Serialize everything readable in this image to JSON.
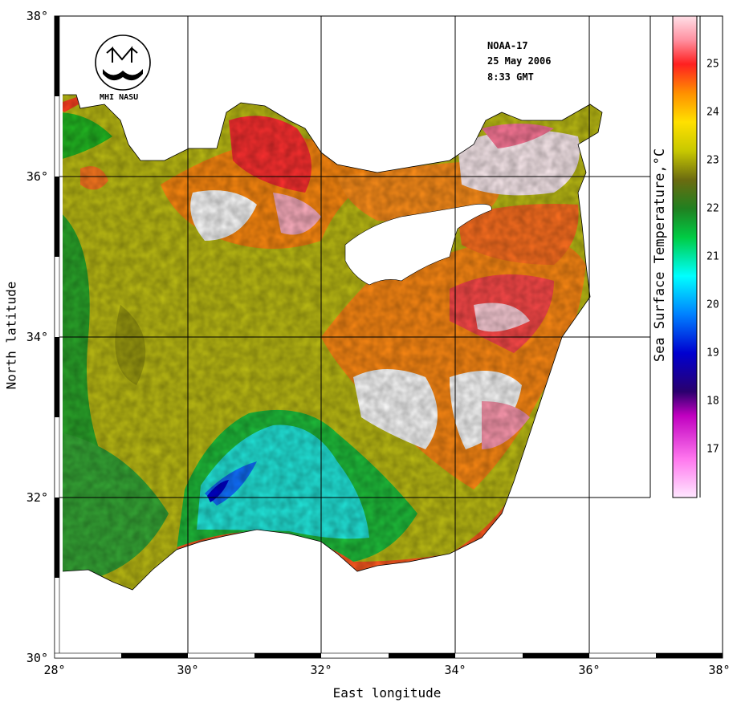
{
  "map": {
    "title_lines": [
      "NOAA-17",
      "25 May 2006",
      "8:33 GMT"
    ],
    "logo_text": "MHI NASU",
    "x_axis_title": "East longitude",
    "y_axis_title": "North latitude",
    "x_ticks": [
      "28°",
      "30°",
      "32°",
      "34°",
      "36°",
      "38°"
    ],
    "y_ticks": [
      "38°",
      "36°",
      "34°",
      "32°",
      "30°"
    ],
    "x_range": [
      28,
      38
    ],
    "y_range": [
      30,
      38
    ],
    "colorbar": {
      "title": "Sea Surface Temperature,°C",
      "ticks": [
        "25",
        "24",
        "23",
        "22",
        "21",
        "20",
        "19",
        "18",
        "17"
      ],
      "range": [
        16.2,
        25.8
      ]
    }
  }
}
